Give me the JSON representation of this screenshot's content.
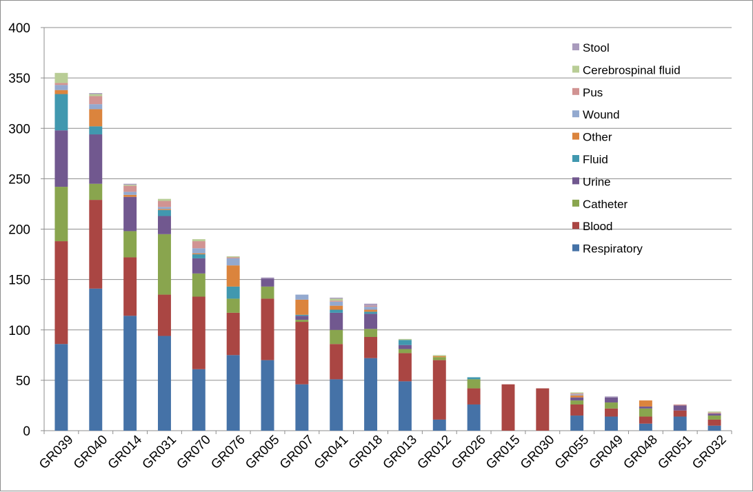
{
  "chart_data": {
    "type": "bar",
    "stacked": true,
    "title": "",
    "xlabel": "",
    "ylabel": "",
    "ylim": [
      0,
      400
    ],
    "yticks": [
      0,
      50,
      100,
      150,
      200,
      250,
      300,
      350,
      400
    ],
    "grid": true,
    "legend_position": "top-right",
    "categories": [
      "GR039",
      "GR040",
      "GR014",
      "GR031",
      "GR070",
      "GR076",
      "GR005",
      "GR007",
      "GR041",
      "GR018",
      "GR013",
      "GR012",
      "GR026",
      "GR015",
      "GR030",
      "GR055",
      "GR049",
      "GR048",
      "GR051",
      "GR032"
    ],
    "series": [
      {
        "name": "Respiratory",
        "color": "#4572A7",
        "values": [
          86,
          141,
          114,
          94,
          61,
          75,
          70,
          46,
          51,
          72,
          49,
          11,
          26,
          0,
          0,
          15,
          14,
          7,
          14,
          5
        ]
      },
      {
        "name": "Blood",
        "color": "#AA4643",
        "values": [
          102,
          88,
          58,
          41,
          72,
          42,
          61,
          62,
          35,
          21,
          28,
          59,
          16,
          46,
          42,
          11,
          8,
          7,
          6,
          6
        ]
      },
      {
        "name": "Catheter",
        "color": "#89A54E",
        "values": [
          54,
          16,
          26,
          60,
          23,
          14,
          12,
          2,
          14,
          8,
          4,
          3,
          9,
          0,
          0,
          4,
          6,
          8,
          0,
          4
        ]
      },
      {
        "name": "Urine",
        "color": "#71588F",
        "values": [
          56,
          49,
          34,
          18,
          15,
          0,
          8,
          4,
          17,
          15,
          4,
          0,
          0,
          0,
          0,
          3,
          5,
          2,
          5,
          2
        ]
      },
      {
        "name": "Fluid",
        "color": "#4198AF",
        "values": [
          36,
          8,
          0,
          6,
          4,
          12,
          0,
          1,
          3,
          2,
          5,
          0,
          2,
          0,
          0,
          0,
          0,
          0,
          0,
          0
        ]
      },
      {
        "name": "Other",
        "color": "#DB843D",
        "values": [
          4,
          17,
          2,
          1,
          1,
          21,
          0,
          15,
          4,
          2,
          0,
          1,
          0,
          0,
          0,
          2,
          0,
          6,
          0,
          0
        ]
      },
      {
        "name": "Wound",
        "color": "#93A9CF",
        "values": [
          5,
          5,
          3,
          2,
          5,
          7,
          0,
          5,
          4,
          3,
          0,
          0,
          0,
          0,
          0,
          1,
          0,
          0,
          0,
          0
        ]
      },
      {
        "name": "Pus",
        "color": "#D19392",
        "values": [
          2,
          8,
          6,
          6,
          7,
          1,
          0,
          0,
          1,
          1,
          0,
          0,
          0,
          0,
          0,
          1,
          0,
          0,
          1,
          1
        ]
      },
      {
        "name": "Cerebrospinal fluid",
        "color": "#B9CD96",
        "values": [
          10,
          2,
          1,
          2,
          2,
          1,
          0,
          0,
          2,
          0,
          1,
          1,
          0,
          0,
          0,
          1,
          0,
          0,
          0,
          1
        ]
      },
      {
        "name": "Stool",
        "color": "#A99BBD",
        "values": [
          0,
          1,
          1,
          0,
          0,
          0,
          1,
          0,
          1,
          2,
          0,
          0,
          0,
          0,
          0,
          0,
          1,
          0,
          0,
          0
        ]
      }
    ]
  }
}
